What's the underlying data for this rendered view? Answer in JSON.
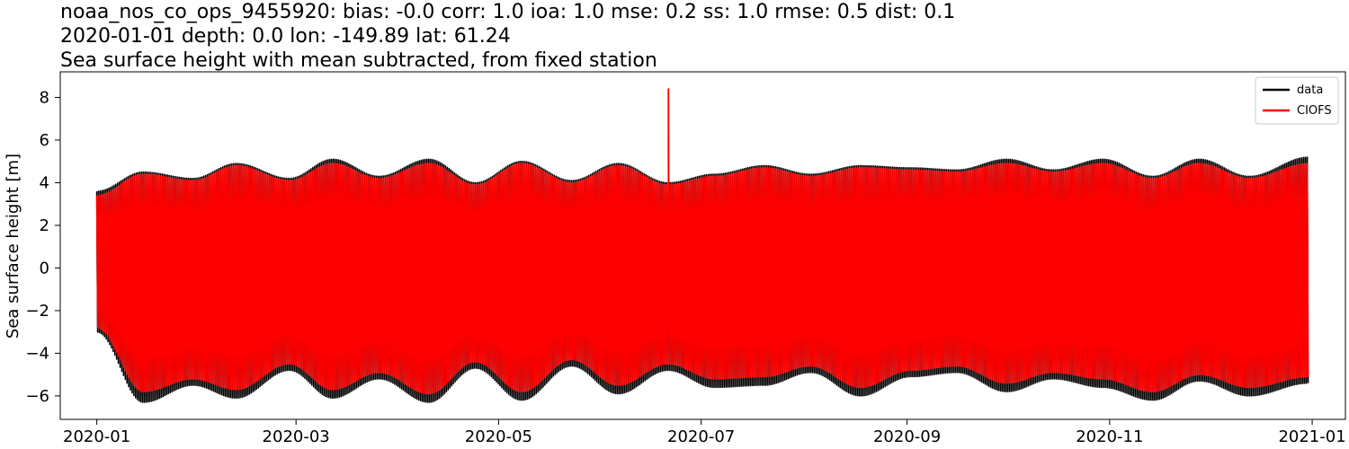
{
  "chart_data": {
    "type": "line",
    "title_lines": [
      "noaa_nos_co_ops_9455920: bias: -0.0  corr: 1.0  ioa: 1.0  mse: 0.2  ss: 1.0  rmse: 0.5  dist: 0.1",
      "2020-01-01 depth: 0.0 lon: -149.89 lat: 61.24",
      "Sea surface height with mean subtracted, from fixed station"
    ],
    "xlabel": "",
    "ylabel": "Sea surface height [m]",
    "x_ticks": [
      "2020-01",
      "2020-03",
      "2020-05",
      "2020-07",
      "2020-09",
      "2020-11",
      "2021-01"
    ],
    "y_ticks": [
      -6,
      -4,
      -2,
      0,
      2,
      4,
      6,
      8
    ],
    "xlim": [
      "2019-12-21",
      "2021-01-11"
    ],
    "ylim": [
      -7.1,
      9.2
    ],
    "grid": false,
    "legend_position": "top-right",
    "series": [
      {
        "name": "data",
        "color": "#000000",
        "x_range": [
          "2020-01-01",
          "2020-12-31"
        ],
        "envelope": {
          "x": [
            "2020-01-01",
            "2020-01-15",
            "2020-01-30",
            "2020-02-12",
            "2020-02-28",
            "2020-03-12",
            "2020-03-26",
            "2020-04-10",
            "2020-04-24",
            "2020-05-08",
            "2020-05-23",
            "2020-06-06",
            "2020-06-21",
            "2020-07-05",
            "2020-07-20",
            "2020-08-03",
            "2020-08-18",
            "2020-09-02",
            "2020-09-16",
            "2020-10-01",
            "2020-10-15",
            "2020-10-30",
            "2020-11-14",
            "2020-11-28",
            "2020-12-13",
            "2020-12-31"
          ],
          "upper": [
            3.6,
            4.5,
            4.2,
            4.9,
            4.2,
            5.1,
            4.3,
            5.1,
            4.0,
            5.0,
            4.1,
            4.9,
            4.0,
            4.4,
            4.8,
            4.4,
            4.8,
            4.7,
            4.6,
            5.1,
            4.6,
            5.1,
            4.3,
            5.1,
            4.3,
            5.2
          ],
          "lower": [
            -3.0,
            -6.3,
            -5.5,
            -6.1,
            -4.8,
            -6.1,
            -5.2,
            -6.3,
            -4.7,
            -6.2,
            -4.6,
            -5.9,
            -4.8,
            -5.6,
            -5.5,
            -4.9,
            -6.0,
            -5.1,
            -4.9,
            -5.8,
            -5.2,
            -5.6,
            -6.2,
            -5.3,
            -6.0,
            -5.4
          ]
        }
      },
      {
        "name": "CIOFS",
        "color": "#ff0000",
        "x_range": [
          "2020-01-01",
          "2020-12-31"
        ],
        "envelope": {
          "x": [
            "2020-01-01",
            "2020-01-15",
            "2020-01-30",
            "2020-02-12",
            "2020-02-28",
            "2020-03-12",
            "2020-03-26",
            "2020-04-10",
            "2020-04-24",
            "2020-05-08",
            "2020-05-23",
            "2020-06-06",
            "2020-06-21",
            "2020-07-05",
            "2020-07-20",
            "2020-08-03",
            "2020-08-18",
            "2020-09-02",
            "2020-09-16",
            "2020-10-01",
            "2020-10-15",
            "2020-10-30",
            "2020-11-14",
            "2020-11-28",
            "2020-12-13",
            "2020-12-31"
          ],
          "upper": [
            3.4,
            4.4,
            4.1,
            4.8,
            4.1,
            4.9,
            4.2,
            4.9,
            3.9,
            4.9,
            4.0,
            4.8,
            3.9,
            4.3,
            4.7,
            4.3,
            4.7,
            4.6,
            4.5,
            4.9,
            4.5,
            4.9,
            4.2,
            4.9,
            4.2,
            4.9
          ],
          "lower": [
            -2.8,
            -5.8,
            -5.2,
            -5.7,
            -4.5,
            -5.7,
            -4.9,
            -5.9,
            -4.4,
            -5.8,
            -4.3,
            -5.5,
            -4.5,
            -5.2,
            -5.1,
            -4.6,
            -5.6,
            -4.8,
            -4.6,
            -5.4,
            -4.9,
            -5.2,
            -5.8,
            -5.0,
            -5.6,
            -5.1
          ]
        },
        "spike": {
          "x": "2020-06-21",
          "y": 8.4
        }
      }
    ]
  }
}
